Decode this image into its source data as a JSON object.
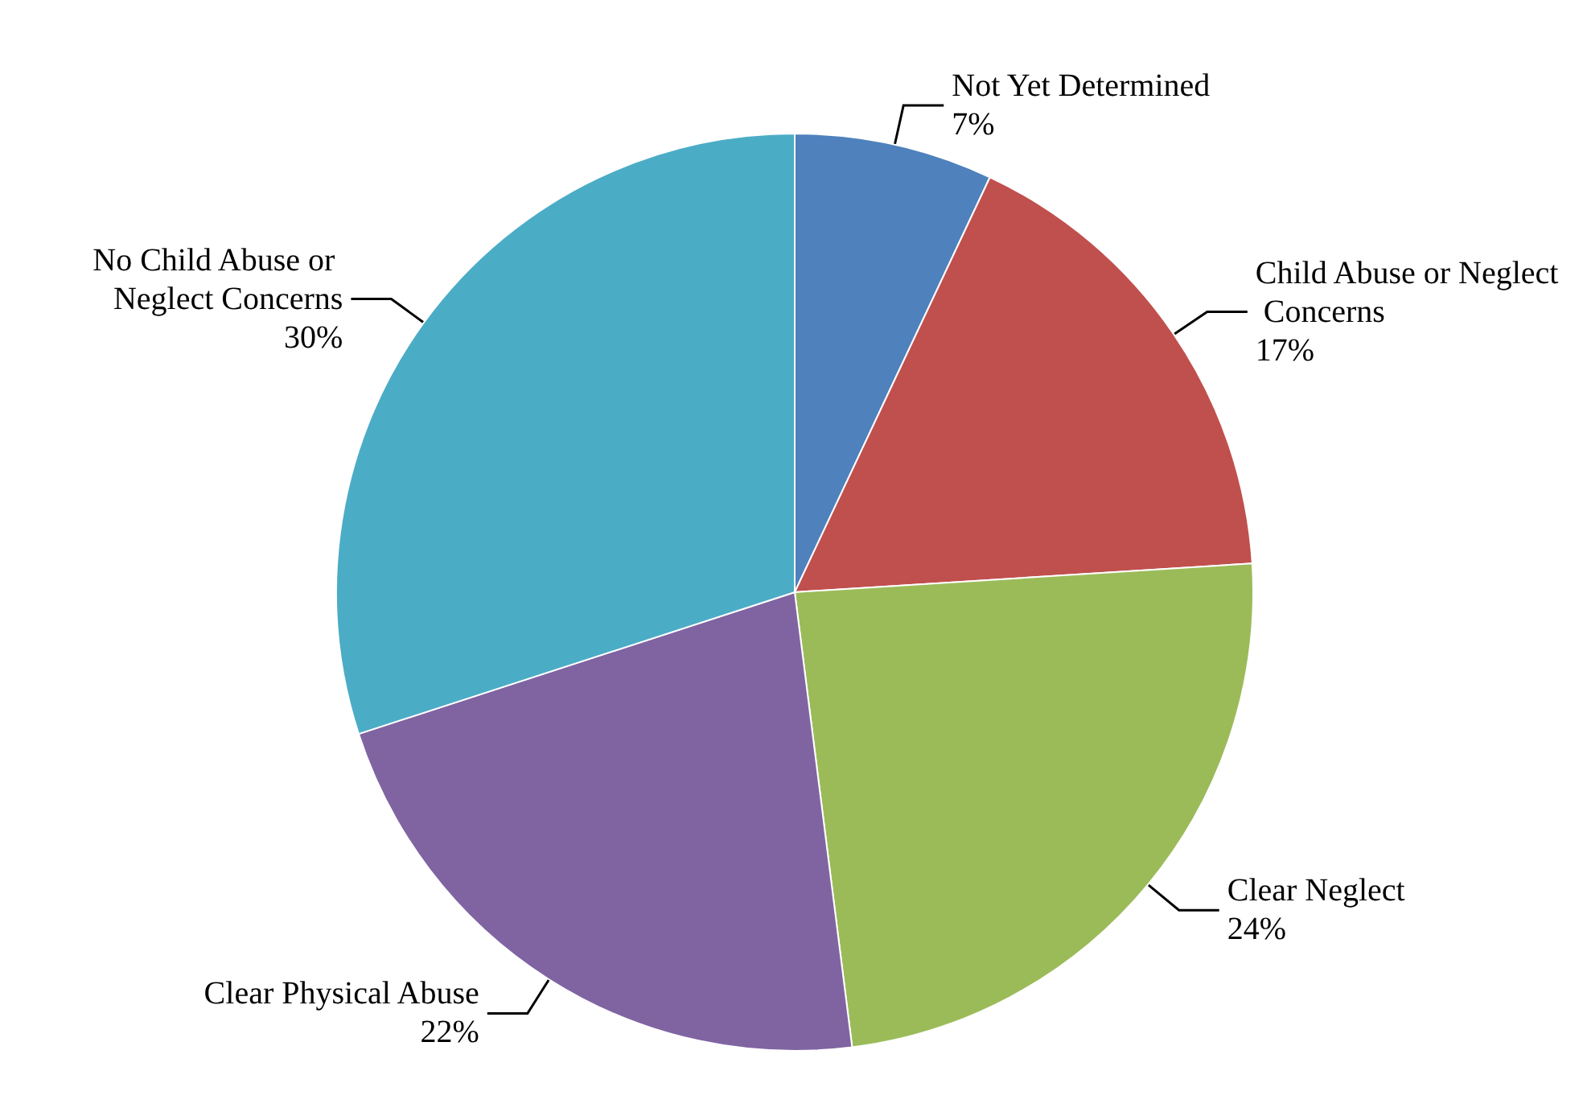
{
  "chart_data": {
    "type": "pie",
    "categories": [
      "Not Yet Determined",
      "Child Abuse or Neglect Concerns",
      "Clear Neglect",
      "Clear Physical Abuse",
      "No Child Abuse or Neglect Concerns"
    ],
    "values": [
      7,
      17,
      24,
      22,
      30
    ],
    "value_labels": [
      "7%",
      "17%",
      "24%",
      "22%",
      "30%"
    ],
    "colors": [
      "#4f81bd",
      "#c0504d",
      "#9bbb59",
      "#8064a2",
      "#4bacc6"
    ],
    "legend": false
  }
}
